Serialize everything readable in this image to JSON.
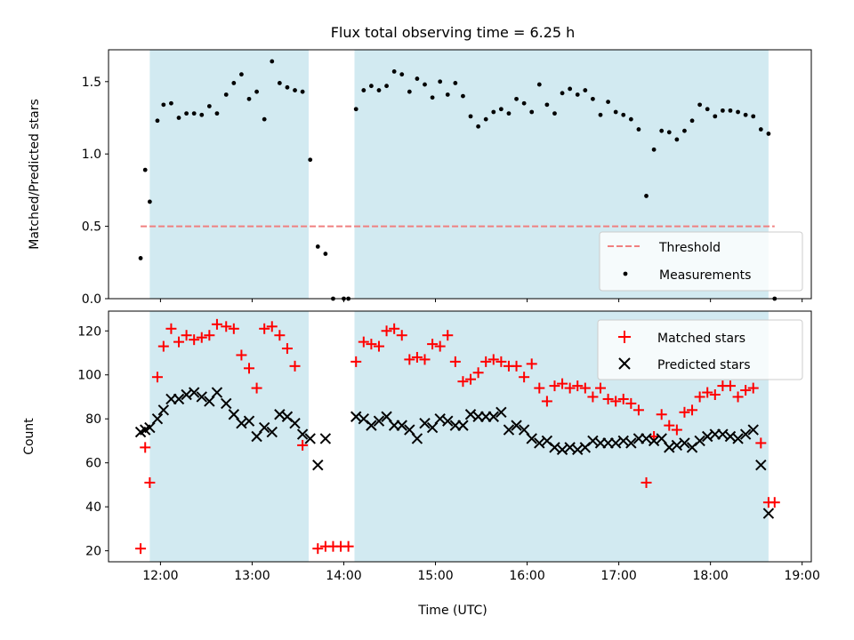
{
  "title": "Flux total observing time = 6.25 h",
  "xlabel": "Time (UTC)",
  "x_ticks": [
    "12:00",
    "13:00",
    "14:00",
    "15:00",
    "16:00",
    "17:00",
    "18:00",
    "19:00"
  ],
  "colors": {
    "shade": "#add8e6",
    "threshold": "#f08080",
    "measurements": "#000000",
    "matched": "#ff0000",
    "predicted": "#000000"
  },
  "chart_data": [
    {
      "type": "scatter",
      "ylabel": "Matched/Predicted stars",
      "xlim": [
        "11:26",
        "19:06"
      ],
      "ylim": [
        0,
        1.72
      ],
      "y_ticks": [
        "0.0",
        "0.5",
        "1.0",
        "1.5"
      ],
      "legend_position": "lower-right",
      "shaded_intervals": [
        [
          "11:53",
          "13:37"
        ],
        [
          "14:07",
          "18:38"
        ]
      ],
      "threshold": {
        "name": "Threshold",
        "value": 0.5,
        "x_range": [
          "11:47",
          "18:42"
        ],
        "style": "dashed"
      },
      "series": [
        {
          "name": "Measurements",
          "marker": "dot",
          "points": [
            [
              "11:47",
              0.28
            ],
            [
              "11:50",
              0.89
            ],
            [
              "11:53",
              0.67
            ],
            [
              "11:58",
              1.23
            ],
            [
              "12:02",
              1.34
            ],
            [
              "12:07",
              1.35
            ],
            [
              "12:12",
              1.25
            ],
            [
              "12:17",
              1.28
            ],
            [
              "12:22",
              1.28
            ],
            [
              "12:27",
              1.27
            ],
            [
              "12:32",
              1.33
            ],
            [
              "12:37",
              1.28
            ],
            [
              "12:43",
              1.41
            ],
            [
              "12:48",
              1.49
            ],
            [
              "12:53",
              1.55
            ],
            [
              "12:58",
              1.38
            ],
            [
              "13:03",
              1.43
            ],
            [
              "13:08",
              1.24
            ],
            [
              "13:13",
              1.64
            ],
            [
              "13:18",
              1.49
            ],
            [
              "13:23",
              1.46
            ],
            [
              "13:28",
              1.44
            ],
            [
              "13:33",
              1.43
            ],
            [
              "13:38",
              0.96
            ],
            [
              "13:43",
              0.36
            ],
            [
              "13:48",
              0.31
            ],
            [
              "13:53",
              0.0
            ],
            [
              "14:00",
              0.0
            ],
            [
              "14:03",
              0.0
            ],
            [
              "14:08",
              1.31
            ],
            [
              "14:13",
              1.44
            ],
            [
              "14:18",
              1.47
            ],
            [
              "14:23",
              1.44
            ],
            [
              "14:28",
              1.47
            ],
            [
              "14:33",
              1.57
            ],
            [
              "14:38",
              1.55
            ],
            [
              "14:43",
              1.43
            ],
            [
              "14:48",
              1.52
            ],
            [
              "14:53",
              1.48
            ],
            [
              "14:58",
              1.39
            ],
            [
              "15:03",
              1.5
            ],
            [
              "15:08",
              1.41
            ],
            [
              "15:13",
              1.49
            ],
            [
              "15:18",
              1.4
            ],
            [
              "15:23",
              1.26
            ],
            [
              "15:28",
              1.19
            ],
            [
              "15:33",
              1.24
            ],
            [
              "15:38",
              1.29
            ],
            [
              "15:43",
              1.31
            ],
            [
              "15:48",
              1.28
            ],
            [
              "15:53",
              1.38
            ],
            [
              "15:58",
              1.35
            ],
            [
              "16:03",
              1.29
            ],
            [
              "16:08",
              1.48
            ],
            [
              "16:13",
              1.34
            ],
            [
              "16:18",
              1.28
            ],
            [
              "16:23",
              1.42
            ],
            [
              "16:28",
              1.45
            ],
            [
              "16:33",
              1.41
            ],
            [
              "16:38",
              1.44
            ],
            [
              "16:43",
              1.38
            ],
            [
              "16:48",
              1.27
            ],
            [
              "16:53",
              1.36
            ],
            [
              "16:58",
              1.29
            ],
            [
              "17:03",
              1.27
            ],
            [
              "17:08",
              1.24
            ],
            [
              "17:13",
              1.17
            ],
            [
              "17:18",
              0.71
            ],
            [
              "17:23",
              1.03
            ],
            [
              "17:28",
              1.16
            ],
            [
              "17:33",
              1.15
            ],
            [
              "17:38",
              1.1
            ],
            [
              "17:43",
              1.16
            ],
            [
              "17:48",
              1.23
            ],
            [
              "17:53",
              1.34
            ],
            [
              "17:58",
              1.31
            ],
            [
              "18:03",
              1.26
            ],
            [
              "18:08",
              1.3
            ],
            [
              "18:13",
              1.3
            ],
            [
              "18:18",
              1.29
            ],
            [
              "18:23",
              1.27
            ],
            [
              "18:28",
              1.26
            ],
            [
              "18:33",
              1.17
            ],
            [
              "18:38",
              1.14
            ],
            [
              "18:42",
              0.0
            ]
          ]
        }
      ]
    },
    {
      "type": "scatter",
      "ylabel": "Count",
      "xlim": [
        "11:26",
        "19:06"
      ],
      "ylim": [
        15,
        129
      ],
      "y_ticks": [
        "20",
        "40",
        "60",
        "80",
        "100",
        "120"
      ],
      "legend_position": "upper-right",
      "shaded_intervals": [
        [
          "11:53",
          "13:37"
        ],
        [
          "14:07",
          "18:38"
        ]
      ],
      "series": [
        {
          "name": "Matched stars",
          "marker": "plus",
          "points": [
            [
              "11:47",
              21
            ],
            [
              "11:50",
              67
            ],
            [
              "11:53",
              51
            ],
            [
              "11:58",
              99
            ],
            [
              "12:02",
              113
            ],
            [
              "12:07",
              121
            ],
            [
              "12:12",
              115
            ],
            [
              "12:17",
              118
            ],
            [
              "12:22",
              116
            ],
            [
              "12:27",
              117
            ],
            [
              "12:32",
              118
            ],
            [
              "12:37",
              123
            ],
            [
              "12:43",
              122
            ],
            [
              "12:48",
              121
            ],
            [
              "12:53",
              109
            ],
            [
              "12:58",
              103
            ],
            [
              "13:03",
              94
            ],
            [
              "13:08",
              121
            ],
            [
              "13:13",
              122
            ],
            [
              "13:18",
              118
            ],
            [
              "13:23",
              112
            ],
            [
              "13:28",
              104
            ],
            [
              "13:33",
              68
            ],
            [
              "13:43",
              21
            ],
            [
              "13:48",
              22
            ],
            [
              "13:53",
              22
            ],
            [
              "13:58",
              22
            ],
            [
              "14:03",
              22
            ],
            [
              "14:08",
              106
            ],
            [
              "14:13",
              115
            ],
            [
              "14:18",
              114
            ],
            [
              "14:23",
              113
            ],
            [
              "14:28",
              120
            ],
            [
              "14:33",
              121
            ],
            [
              "14:38",
              118
            ],
            [
              "14:43",
              107
            ],
            [
              "14:48",
              108
            ],
            [
              "14:53",
              107
            ],
            [
              "14:58",
              114
            ],
            [
              "15:03",
              113
            ],
            [
              "15:08",
              118
            ],
            [
              "15:13",
              106
            ],
            [
              "15:18",
              97
            ],
            [
              "15:23",
              98
            ],
            [
              "15:28",
              101
            ],
            [
              "15:33",
              106
            ],
            [
              "15:38",
              107
            ],
            [
              "15:43",
              106
            ],
            [
              "15:48",
              104
            ],
            [
              "15:53",
              104
            ],
            [
              "15:58",
              99
            ],
            [
              "16:03",
              105
            ],
            [
              "16:08",
              94
            ],
            [
              "16:13",
              88
            ],
            [
              "16:18",
              95
            ],
            [
              "16:23",
              96
            ],
            [
              "16:28",
              94
            ],
            [
              "16:33",
              95
            ],
            [
              "16:38",
              94
            ],
            [
              "16:43",
              90
            ],
            [
              "16:48",
              94
            ],
            [
              "16:53",
              89
            ],
            [
              "16:58",
              88
            ],
            [
              "17:03",
              89
            ],
            [
              "17:08",
              87
            ],
            [
              "17:13",
              84
            ],
            [
              "17:18",
              51
            ],
            [
              "17:23",
              72
            ],
            [
              "17:28",
              82
            ],
            [
              "17:33",
              77
            ],
            [
              "17:38",
              75
            ],
            [
              "17:43",
              83
            ],
            [
              "17:48",
              84
            ],
            [
              "17:53",
              90
            ],
            [
              "17:58",
              92
            ],
            [
              "18:03",
              91
            ],
            [
              "18:08",
              95
            ],
            [
              "18:13",
              95
            ],
            [
              "18:18",
              90
            ],
            [
              "18:23",
              93
            ],
            [
              "18:28",
              94
            ],
            [
              "18:33",
              69
            ],
            [
              "18:38",
              42
            ],
            [
              "18:42",
              42
            ]
          ]
        },
        {
          "name": "Predicted stars",
          "marker": "x",
          "points": [
            [
              "11:47",
              74
            ],
            [
              "11:50",
              75
            ],
            [
              "11:53",
              76
            ],
            [
              "11:58",
              80
            ],
            [
              "12:02",
              84
            ],
            [
              "12:07",
              89
            ],
            [
              "12:12",
              89
            ],
            [
              "12:17",
              91
            ],
            [
              "12:22",
              92
            ],
            [
              "12:27",
              90
            ],
            [
              "12:32",
              88
            ],
            [
              "12:37",
              92
            ],
            [
              "12:43",
              87
            ],
            [
              "12:48",
              82
            ],
            [
              "12:53",
              78
            ],
            [
              "12:58",
              79
            ],
            [
              "13:03",
              72
            ],
            [
              "13:08",
              76
            ],
            [
              "13:13",
              74
            ],
            [
              "13:18",
              82
            ],
            [
              "13:23",
              81
            ],
            [
              "13:28",
              78
            ],
            [
              "13:33",
              73
            ],
            [
              "13:38",
              71
            ],
            [
              "13:43",
              59
            ],
            [
              "13:48",
              71
            ],
            [
              "14:08",
              81
            ],
            [
              "14:13",
              80
            ],
            [
              "14:18",
              77
            ],
            [
              "14:23",
              79
            ],
            [
              "14:28",
              81
            ],
            [
              "14:33",
              77
            ],
            [
              "14:38",
              77
            ],
            [
              "14:43",
              75
            ],
            [
              "14:48",
              71
            ],
            [
              "14:53",
              78
            ],
            [
              "14:58",
              76
            ],
            [
              "15:03",
              80
            ],
            [
              "15:08",
              79
            ],
            [
              "15:13",
              77
            ],
            [
              "15:18",
              77
            ],
            [
              "15:23",
              82
            ],
            [
              "15:28",
              81
            ],
            [
              "15:33",
              81
            ],
            [
              "15:38",
              81
            ],
            [
              "15:43",
              83
            ],
            [
              "15:48",
              75
            ],
            [
              "15:53",
              77
            ],
            [
              "15:58",
              75
            ],
            [
              "16:03",
              71
            ],
            [
              "16:08",
              69
            ],
            [
              "16:13",
              70
            ],
            [
              "16:18",
              67
            ],
            [
              "16:23",
              66
            ],
            [
              "16:28",
              67
            ],
            [
              "16:33",
              66
            ],
            [
              "16:38",
              67
            ],
            [
              "16:43",
              70
            ],
            [
              "16:48",
              69
            ],
            [
              "16:53",
              69
            ],
            [
              "16:58",
              69
            ],
            [
              "17:03",
              70
            ],
            [
              "17:08",
              69
            ],
            [
              "17:13",
              71
            ],
            [
              "17:18",
              71
            ],
            [
              "17:23",
              70
            ],
            [
              "17:28",
              71
            ],
            [
              "17:33",
              67
            ],
            [
              "17:38",
              68
            ],
            [
              "17:43",
              69
            ],
            [
              "17:48",
              67
            ],
            [
              "17:53",
              70
            ],
            [
              "17:58",
              72
            ],
            [
              "18:03",
              73
            ],
            [
              "18:08",
              73
            ],
            [
              "18:13",
              72
            ],
            [
              "18:18",
              71
            ],
            [
              "18:23",
              73
            ],
            [
              "18:28",
              75
            ],
            [
              "18:33",
              59
            ],
            [
              "18:38",
              37
            ]
          ]
        }
      ]
    }
  ]
}
